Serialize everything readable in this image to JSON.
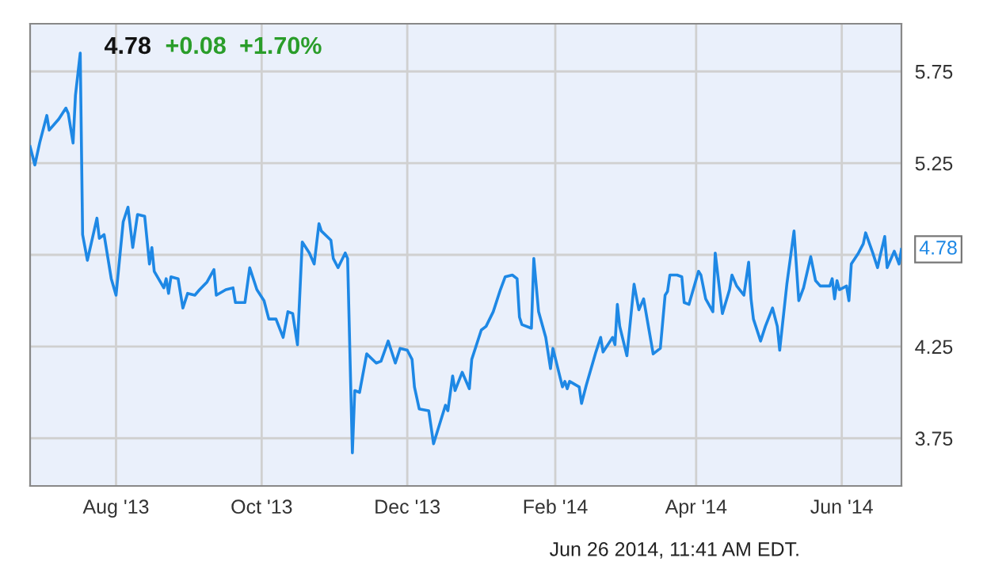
{
  "chart_data": {
    "type": "line",
    "x": [
      "2013-06-26",
      "2013-06-28",
      "2013-06-30",
      "2013-07-03",
      "2013-07-04",
      "2013-07-08",
      "2013-07-11",
      "2013-07-12",
      "2013-07-14",
      "2013-07-15",
      "2013-07-17",
      "2013-07-18",
      "2013-07-20",
      "2013-07-24",
      "2013-07-25",
      "2013-07-27",
      "2013-07-30",
      "2013-08-01",
      "2013-08-04",
      "2013-08-06",
      "2013-08-08",
      "2013-08-10",
      "2013-08-13",
      "2013-08-15",
      "2013-08-16",
      "2013-08-17",
      "2013-08-21",
      "2013-08-22",
      "2013-08-23",
      "2013-08-24",
      "2013-08-27",
      "2013-08-29",
      "2013-08-31",
      "2013-09-03",
      "2013-09-05",
      "2013-09-08",
      "2013-09-11",
      "2013-09-12",
      "2013-09-16",
      "2013-09-19",
      "2013-09-20",
      "2013-09-24",
      "2013-09-26",
      "2013-09-29",
      "2013-10-02",
      "2013-10-04",
      "2013-10-07",
      "2013-10-10",
      "2013-10-12",
      "2013-10-14",
      "2013-10-16",
      "2013-10-18",
      "2013-10-21",
      "2013-10-23",
      "2013-10-25",
      "2013-10-26",
      "2013-10-30",
      "2013-10-31",
      "2013-11-02",
      "2013-11-05",
      "2013-11-06",
      "2013-11-08",
      "2013-11-09",
      "2013-11-11",
      "2013-11-14",
      "2013-11-18",
      "2013-11-20",
      "2013-11-23",
      "2013-11-24",
      "2013-11-26",
      "2013-11-28",
      "2013-12-01",
      "2013-12-03",
      "2013-12-04",
      "2013-12-06",
      "2013-12-10",
      "2013-12-12",
      "2013-12-17",
      "2013-12-18",
      "2013-12-20",
      "2013-12-21",
      "2013-12-24",
      "2013-12-27",
      "2013-12-28",
      "2014-01-01",
      "2014-01-03",
      "2014-01-06",
      "2014-01-09",
      "2014-01-11",
      "2014-01-14",
      "2014-01-16",
      "2014-01-17",
      "2014-01-18",
      "2014-01-22",
      "2014-01-23",
      "2014-01-25",
      "2014-01-28",
      "2014-01-30",
      "2014-01-31",
      "2014-02-04",
      "2014-02-05",
      "2014-02-06",
      "2014-02-07",
      "2014-02-11",
      "2014-02-12",
      "2014-02-14",
      "2014-02-18",
      "2014-02-20",
      "2014-02-21",
      "2014-02-24",
      "2014-02-25",
      "2014-02-26",
      "2014-02-27",
      "2014-02-28",
      "2014-03-03",
      "2014-03-06",
      "2014-03-08",
      "2014-03-10",
      "2014-03-14",
      "2014-03-17",
      "2014-03-19",
      "2014-03-20",
      "2014-03-21",
      "2014-03-24",
      "2014-03-26",
      "2014-03-27",
      "2014-03-29",
      "2014-04-02",
      "2014-04-03",
      "2014-04-05",
      "2014-04-08",
      "2014-04-09",
      "2014-04-12",
      "2014-04-15",
      "2014-04-16",
      "2014-04-18",
      "2014-04-21",
      "2014-04-23",
      "2014-04-24",
      "2014-04-25",
      "2014-04-28",
      "2014-04-30",
      "2014-05-03",
      "2014-05-05",
      "2014-05-06",
      "2014-05-09",
      "2014-05-12",
      "2014-05-14",
      "2014-05-16",
      "2014-05-19",
      "2014-05-21",
      "2014-05-23",
      "2014-05-27",
      "2014-05-28",
      "2014-05-29",
      "2014-05-30",
      "2014-05-31",
      "2014-06-03",
      "2014-06-04",
      "2014-06-05",
      "2014-06-08",
      "2014-06-10",
      "2014-06-11",
      "2014-06-14",
      "2014-06-16",
      "2014-06-17",
      "2014-06-19",
      "2014-06-20",
      "2014-06-23",
      "2014-06-25",
      "2014-06-26"
    ],
    "series": [
      {
        "color": "#1e88e5",
        "values": [
          5.34,
          5.24,
          5.36,
          5.51,
          5.43,
          5.49,
          5.55,
          5.52,
          5.36,
          5.62,
          5.85,
          4.86,
          4.72,
          4.95,
          4.84,
          4.86,
          4.62,
          4.53,
          4.93,
          5.01,
          4.79,
          4.97,
          4.96,
          4.7,
          4.79,
          4.66,
          4.57,
          4.62,
          4.54,
          4.63,
          4.62,
          4.46,
          4.54,
          4.53,
          4.56,
          4.6,
          4.67,
          4.53,
          4.56,
          4.57,
          4.49,
          4.49,
          4.68,
          4.56,
          4.5,
          4.4,
          4.4,
          4.3,
          4.44,
          4.43,
          4.26,
          4.82,
          4.76,
          4.7,
          4.92,
          4.88,
          4.83,
          4.73,
          4.68,
          4.76,
          4.73,
          3.67,
          4.01,
          4.0,
          4.21,
          4.16,
          4.17,
          4.28,
          4.24,
          4.16,
          4.24,
          4.23,
          4.18,
          4.03,
          3.91,
          3.9,
          3.72,
          3.93,
          3.9,
          4.09,
          4.01,
          4.11,
          4.02,
          4.18,
          4.34,
          4.36,
          4.44,
          4.56,
          4.63,
          4.64,
          4.62,
          4.41,
          4.37,
          4.35,
          4.73,
          4.44,
          4.3,
          4.13,
          4.24,
          4.03,
          4.06,
          4.02,
          4.06,
          4.03,
          3.94,
          4.04,
          4.22,
          4.3,
          4.22,
          4.28,
          4.3,
          4.26,
          4.48,
          4.36,
          4.2,
          4.59,
          4.45,
          4.51,
          4.21,
          4.24,
          4.53,
          4.55,
          4.64,
          4.64,
          4.63,
          4.49,
          4.48,
          4.66,
          4.64,
          4.51,
          4.44,
          4.76,
          4.43,
          4.56,
          4.64,
          4.58,
          4.53,
          4.71,
          4.51,
          4.4,
          4.28,
          4.36,
          4.46,
          4.36,
          4.23,
          4.59,
          4.88,
          4.5,
          4.57,
          4.74,
          4.61,
          4.58,
          4.58,
          4.62,
          4.51,
          4.61,
          4.56,
          4.58,
          4.5,
          4.7,
          4.76,
          4.81,
          4.87,
          4.76,
          4.68,
          4.74,
          4.85,
          4.68,
          4.77,
          4.7,
          4.78
        ]
      }
    ],
    "xlim": [
      "2013-06-26",
      "2014-06-26"
    ],
    "ylim": [
      3.49,
      6.01
    ],
    "xticks": [
      {
        "value": "2013-08-01",
        "label": "Aug '13"
      },
      {
        "value": "2013-10-01",
        "label": "Oct '13"
      },
      {
        "value": "2013-12-01",
        "label": "Dec '13"
      },
      {
        "value": "2014-02-01",
        "label": "Feb '14"
      },
      {
        "value": "2014-04-01",
        "label": "Apr '14"
      },
      {
        "value": "2014-06-01",
        "label": "Jun '14"
      }
    ],
    "yticks": [
      3.75,
      4.25,
      {
        "value": 4.75,
        "label": null
      },
      5.25,
      5.75
    ],
    "grid": true,
    "marker": "none",
    "line_style": "solid",
    "annotations": [
      "4.78",
      "+0.08",
      "+1.70%",
      "Jun 26 2014, 11:41 AM EDT.",
      {
        "text": "4.78",
        "x": "2014-06-26",
        "y": 4.78
      }
    ]
  }
}
